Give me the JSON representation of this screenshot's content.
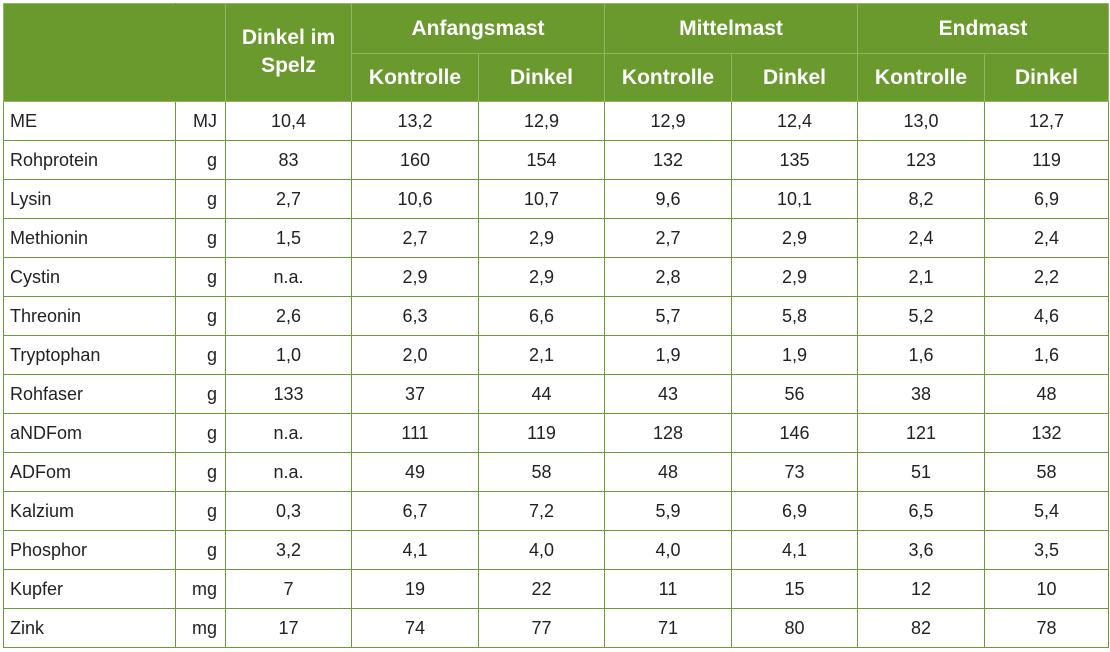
{
  "header": {
    "dinkel_spelz_line1": "Dinkel im",
    "dinkel_spelz_line2": "Spelz",
    "phases": [
      "Anfangsmast",
      "Mittelmast",
      "Endmast"
    ],
    "sub_columns": [
      "Kontrolle",
      "Dinkel",
      "Kontrolle",
      "Dinkel",
      "Kontrolle",
      "Dinkel"
    ]
  },
  "rows": [
    {
      "name": "ME",
      "unit": "MJ",
      "values": [
        "10,4",
        "13,2",
        "12,9",
        "12,9",
        "12,4",
        "13,0",
        "12,7"
      ]
    },
    {
      "name": "Rohprotein",
      "unit": "g",
      "values": [
        "83",
        "160",
        "154",
        "132",
        "135",
        "123",
        "119"
      ]
    },
    {
      "name": "Lysin",
      "unit": "g",
      "values": [
        "2,7",
        "10,6",
        "10,7",
        "9,6",
        "10,1",
        "8,2",
        "6,9"
      ]
    },
    {
      "name": "Methionin",
      "unit": "g",
      "values": [
        "1,5",
        "2,7",
        "2,9",
        "2,7",
        "2,9",
        "2,4",
        "2,4"
      ]
    },
    {
      "name": "Cystin",
      "unit": "g",
      "values": [
        "n.a.",
        "2,9",
        "2,9",
        "2,8",
        "2,9",
        "2,1",
        "2,2"
      ]
    },
    {
      "name": "Threonin",
      "unit": "g",
      "values": [
        "2,6",
        "6,3",
        "6,6",
        "5,7",
        "5,8",
        "5,2",
        "4,6"
      ]
    },
    {
      "name": "Tryptophan",
      "unit": "g",
      "values": [
        "1,0",
        "2,0",
        "2,1",
        "1,9",
        "1,9",
        "1,6",
        "1,6"
      ]
    },
    {
      "name": "Rohfaser",
      "unit": "g",
      "values": [
        "133",
        "37",
        "44",
        "43",
        "56",
        "38",
        "48"
      ]
    },
    {
      "name": "aNDFom",
      "unit": "g",
      "values": [
        "n.a.",
        "111",
        "119",
        "128",
        "146",
        "121",
        "132"
      ]
    },
    {
      "name": "ADFom",
      "unit": "g",
      "values": [
        "n.a.",
        "49",
        "58",
        "48",
        "73",
        "51",
        "58"
      ]
    },
    {
      "name": "Kalzium",
      "unit": "g",
      "values": [
        "0,3",
        "6,7",
        "7,2",
        "5,9",
        "6,9",
        "6,5",
        "5,4"
      ]
    },
    {
      "name": "Phosphor",
      "unit": "g",
      "values": [
        "3,2",
        "4,1",
        "4,0",
        "4,0",
        "4,1",
        "3,6",
        "3,5"
      ]
    },
    {
      "name": "Kupfer",
      "unit": "mg",
      "values": [
        "7",
        "19",
        "22",
        "11",
        "15",
        "12",
        "10"
      ]
    },
    {
      "name": "Zink",
      "unit": "mg",
      "values": [
        "17",
        "74",
        "77",
        "71",
        "80",
        "82",
        "78"
      ]
    }
  ]
}
